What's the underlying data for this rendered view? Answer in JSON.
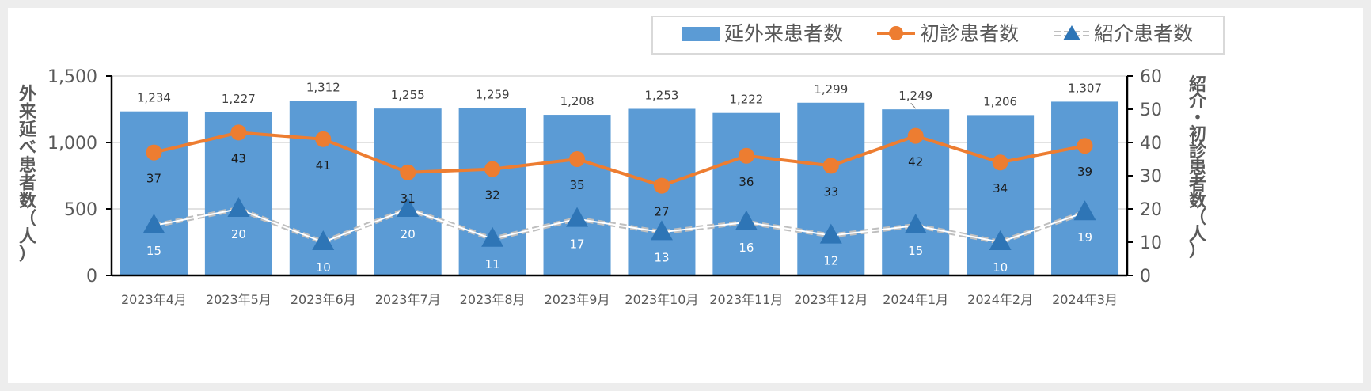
{
  "chart_data": {
    "type": "bar",
    "categories": [
      "2023年4月",
      "2023年5月",
      "2023年6月",
      "2023年7月",
      "2023年8月",
      "2023年9月",
      "2023年10月",
      "2023年11月",
      "2023年12月",
      "2024年1月",
      "2024年2月",
      "2024年3月"
    ],
    "series": [
      {
        "name": "延外来患者数",
        "type": "bar",
        "axis": "left",
        "color": "#5b9bd5",
        "values": [
          1234,
          1227,
          1312,
          1255,
          1259,
          1208,
          1253,
          1222,
          1299,
          1249,
          1206,
          1307
        ],
        "labels": [
          "1,234",
          "1,227",
          "1,312",
          "1,255",
          "1,259",
          "1,208",
          "1,253",
          "1,222",
          "1,299",
          "1,249",
          "1,206",
          "1,307"
        ]
      },
      {
        "name": "初診患者数",
        "type": "line",
        "axis": "right",
        "color": "#ed7d31",
        "values": [
          37,
          43,
          41,
          31,
          32,
          35,
          27,
          36,
          33,
          42,
          34,
          39
        ],
        "labels": [
          "37",
          "43",
          "41",
          "31",
          "32",
          "35",
          "27",
          "36",
          "33",
          "42",
          "34",
          "39"
        ]
      },
      {
        "name": "紹介患者数",
        "type": "line",
        "axis": "right",
        "color": "#2e75b6",
        "line_color": "#bfbfbf",
        "line_style": "double-dashed",
        "marker": "triangle",
        "values": [
          15,
          20,
          10,
          20,
          11,
          17,
          13,
          16,
          12,
          15,
          10,
          19
        ],
        "labels": [
          "15",
          "20",
          "10",
          "20",
          "11",
          "17",
          "13",
          "16",
          "12",
          "15",
          "10",
          "19"
        ]
      }
    ],
    "y_left": {
      "title_chars": [
        "外",
        "来",
        "延",
        "べ",
        "患",
        "者",
        "数",
        "（",
        "人",
        "）"
      ],
      "range": [
        0,
        1500
      ],
      "ticks": [
        0,
        500,
        1000,
        1500
      ],
      "tick_labels": [
        "0",
        "500",
        "1,000",
        "1,500"
      ]
    },
    "y_right": {
      "title_chars": [
        "紹",
        "介",
        "・",
        "初",
        "診",
        "患",
        "者",
        "数",
        "（",
        "人",
        "）"
      ],
      "range": [
        0,
        60
      ],
      "ticks": [
        0,
        10,
        20,
        30,
        40,
        50,
        60
      ],
      "tick_labels": [
        "0",
        "10",
        "20",
        "30",
        "40",
        "50",
        "60"
      ]
    },
    "grid": true,
    "legend": "top-right"
  }
}
